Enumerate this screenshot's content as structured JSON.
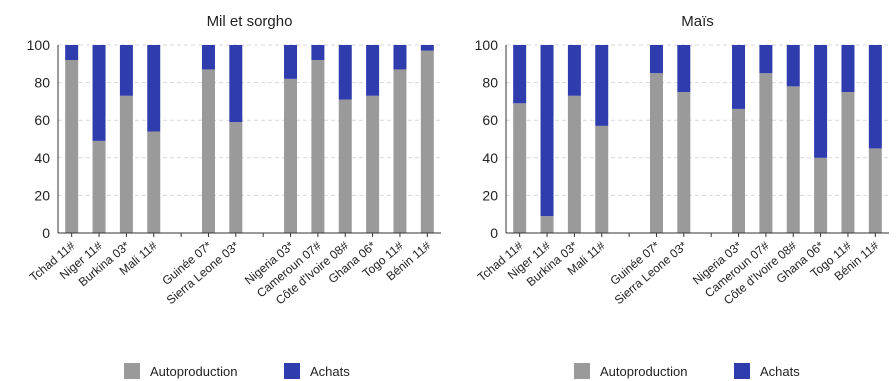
{
  "colors": {
    "autoproduction": "#9a9a9a",
    "achats": "#2e3cae",
    "grid": "#d9d9d9",
    "axis": "#333333"
  },
  "legend": {
    "autoproduction": "Autoproduction",
    "achats": "Achats",
    "placement": "bottom"
  },
  "chart_data": [
    {
      "type": "bar",
      "stacked": true,
      "title": "Mil et sorgho",
      "ylim": [
        0,
        100
      ],
      "yticks": [
        0,
        20,
        40,
        60,
        80,
        100
      ],
      "grid": true,
      "categories": [
        "Tchad 11#",
        "Niger 11#",
        "Burkina 03*",
        "Mali 11#",
        "",
        "Guinée 07*",
        "Sierra Leone 03*",
        "",
        "Nigeria 03*",
        "Cameroun 07#",
        "Côte d'Ivoire 08#",
        "Ghana 06*",
        "Togo 11#",
        "Bénin 11#"
      ],
      "series": [
        {
          "name": "Autoproduction",
          "values": [
            92,
            49,
            73,
            54,
            null,
            87,
            59,
            null,
            82,
            92,
            71,
            73,
            87,
            97
          ]
        },
        {
          "name": "Achats",
          "values": [
            8,
            51,
            27,
            46,
            null,
            13,
            41,
            null,
            18,
            8,
            29,
            27,
            13,
            3
          ]
        }
      ]
    },
    {
      "type": "bar",
      "stacked": true,
      "title": "Maïs",
      "ylim": [
        0,
        100
      ],
      "yticks": [
        0,
        20,
        40,
        60,
        80,
        100
      ],
      "grid": true,
      "categories": [
        "Tchad 11#",
        "Niger 11#",
        "Burkina 03*",
        "Mali 11#",
        "",
        "Guinée 07*",
        "Sierra Leone 03*",
        "",
        "Nigeria 03*",
        "Cameroun 07#",
        "Côte d'Ivoire 08#",
        "Ghana 06*",
        "Togo 11#",
        "Bénin 11#"
      ],
      "series": [
        {
          "name": "Autoproduction",
          "values": [
            69,
            9,
            73,
            57,
            null,
            85,
            75,
            null,
            66,
            85,
            78,
            40,
            75,
            45
          ]
        },
        {
          "name": "Achats",
          "values": [
            31,
            91,
            27,
            43,
            null,
            15,
            25,
            null,
            34,
            15,
            22,
            60,
            25,
            55
          ]
        }
      ]
    }
  ]
}
